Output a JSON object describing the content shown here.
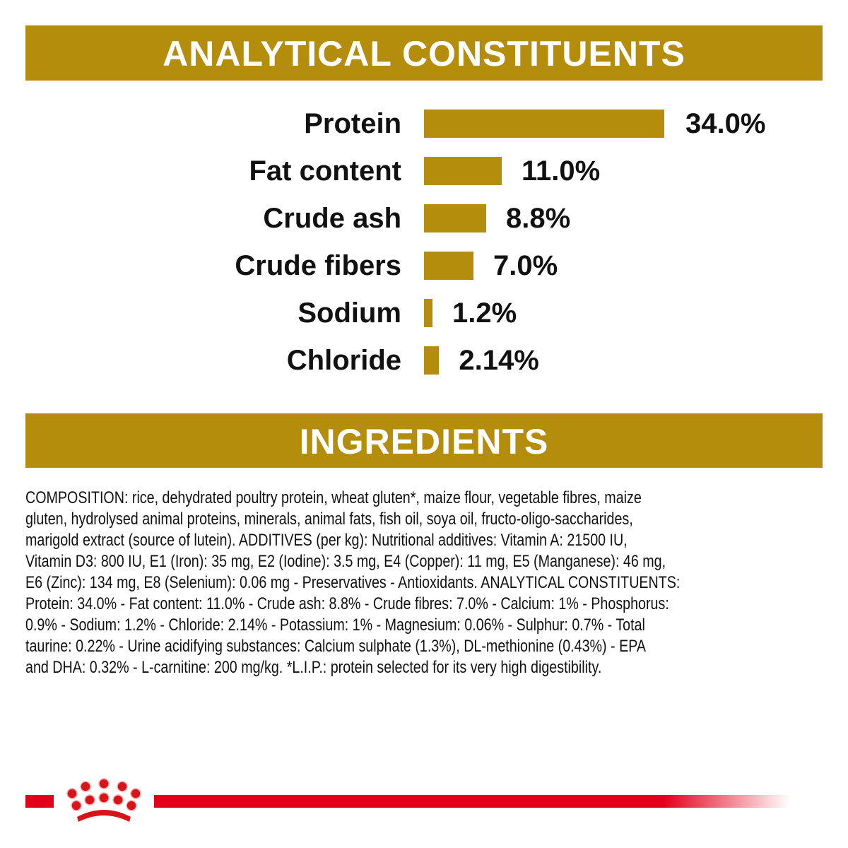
{
  "analytical_title": "ANALYTICAL CONSTITUENTS",
  "ingredients_title": "INGREDIENTS",
  "chart_data": {
    "type": "bar",
    "orientation": "horizontal",
    "categories": [
      "Protein",
      "Fat content",
      "Crude ash",
      "Crude fibers",
      "Sodium",
      "Chloride"
    ],
    "values": [
      34.0,
      11.0,
      8.8,
      7.0,
      1.2,
      2.14
    ],
    "labels": [
      "34.0%",
      "11.0%",
      "8.8%",
      "7.0%",
      "1.2%",
      "2.14%"
    ],
    "unit": "%",
    "grid": false,
    "color": "#b58d0c"
  },
  "ingredients_lines": [
    "COMPOSITION: rice, dehydrated poultry protein, wheat gluten*, maize flour, vegetable fibres, maize",
    "gluten, hydrolysed animal proteins, minerals, animal fats, fish oil, soya oil, fructo-oligo-saccharides,",
    "marigold extract (source of lutein). ADDITIVES (per kg): Nutritional additives: Vitamin A: 21500 IU,",
    "Vitamin D3: 800 IU, E1 (Iron): 35 mg, E2 (Iodine): 3.5 mg, E4 (Copper): 11 mg, E5 (Manganese): 46 mg,",
    "E6 (Zinc): 134 mg, E8 (Selenium): 0.06 mg - Preservatives - Antioxidants. ANALYTICAL CONSTITUENTS:",
    "Protein: 34.0% - Fat content: 11.0% - Crude ash: 8.8% - Crude fibres: 7.0% - Calcium: 1% - Phosphorus:",
    "0.9% - Sodium: 1.2% - Chloride: 2.14% - Potassium: 1% - Magnesium: 0.06% - Sulphur: 0.7% - Total",
    "taurine: 0.22% - Urine acidifying substances: Calcium sulphate (1.3%), DL-methionine (0.43%) - EPA",
    "and DHA: 0.32% - L-carnitine: 200 mg/kg. *L.I.P.: protein selected for its very high digestibility."
  ],
  "brand_color": "#e2001a",
  "logo": "crown-logo"
}
